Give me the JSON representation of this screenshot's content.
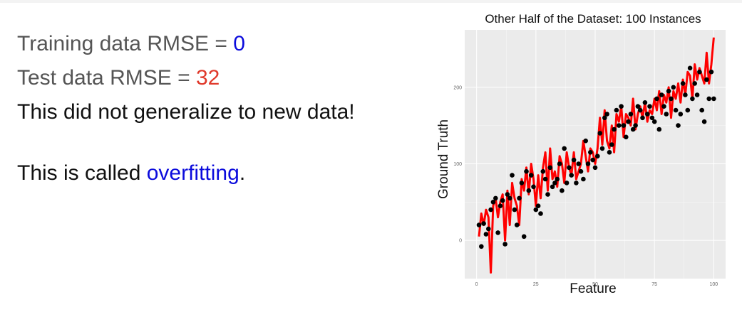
{
  "text": {
    "train_label": "Training data RMSE = ",
    "train_value": "0",
    "test_label": "Test data RMSE = ",
    "test_value": "32",
    "generalize": "This did not generalize to new data!",
    "called_prefix": "This is called ",
    "called_term": "overfitting",
    "called_suffix": "."
  },
  "colors": {
    "train_value": "#0b0bdc",
    "test_value": "#e0392b",
    "term": "#0b0bdc",
    "fit_line": "#ff0000",
    "points": "#000000",
    "panel": "#ebebeb",
    "grid": "#ffffff"
  },
  "chart_data": {
    "type": "scatter",
    "title": "Other Half of the Dataset: 100 Instances",
    "xlabel": "Feature",
    "ylabel": "Ground Truth",
    "xlim": [
      -5,
      105
    ],
    "ylim": [
      -50,
      275
    ],
    "xticks": [
      0,
      25,
      50,
      75,
      100
    ],
    "yticks": [
      0,
      100,
      200
    ],
    "grid": true,
    "legend": "none",
    "series": [
      {
        "kind": "points",
        "x": [
          1,
          2,
          3,
          4,
          5,
          6,
          7,
          8,
          9,
          10,
          11,
          12,
          13,
          14,
          15,
          16,
          17,
          18,
          19,
          20,
          21,
          22,
          23,
          24,
          25,
          26,
          27,
          28,
          29,
          30,
          31,
          32,
          33,
          34,
          35,
          36,
          37,
          38,
          39,
          40,
          41,
          42,
          43,
          44,
          45,
          46,
          47,
          48,
          49,
          50,
          51,
          52,
          53,
          54,
          55,
          56,
          57,
          58,
          59,
          60,
          61,
          62,
          63,
          64,
          65,
          66,
          67,
          68,
          69,
          70,
          71,
          72,
          73,
          74,
          75,
          76,
          77,
          78,
          79,
          80,
          81,
          82,
          83,
          84,
          85,
          86,
          87,
          88,
          89,
          90,
          91,
          92,
          93,
          94,
          95,
          96,
          97,
          98,
          99,
          100
        ],
        "y": [
          20,
          -8,
          22,
          8,
          15,
          40,
          50,
          55,
          10,
          45,
          52,
          -5,
          60,
          55,
          85,
          40,
          20,
          55,
          75,
          5,
          90,
          65,
          85,
          70,
          40,
          45,
          35,
          90,
          80,
          60,
          95,
          70,
          75,
          80,
          100,
          65,
          120,
          75,
          95,
          85,
          105,
          75,
          100,
          90,
          80,
          130,
          100,
          115,
          105,
          95,
          110,
          140,
          120,
          160,
          165,
          115,
          125,
          145,
          170,
          150,
          175,
          150,
          135,
          155,
          165,
          145,
          150,
          175,
          170,
          160,
          180,
          165,
          175,
          160,
          155,
          185,
          145,
          190,
          175,
          165,
          195,
          185,
          200,
          170,
          150,
          165,
          205,
          190,
          170,
          225,
          185,
          205,
          190,
          220,
          170,
          155,
          210,
          185,
          220,
          185
        ]
      },
      {
        "kind": "line",
        "x": [
          1,
          2,
          3,
          4,
          5,
          6,
          7,
          8,
          9,
          10,
          11,
          12,
          13,
          14,
          15,
          16,
          17,
          18,
          19,
          20,
          21,
          22,
          23,
          24,
          25,
          26,
          27,
          28,
          29,
          30,
          31,
          32,
          33,
          34,
          35,
          36,
          37,
          38,
          39,
          40,
          41,
          42,
          43,
          44,
          45,
          46,
          47,
          48,
          49,
          50,
          51,
          52,
          53,
          54,
          55,
          56,
          57,
          58,
          59,
          60,
          61,
          62,
          63,
          64,
          65,
          66,
          67,
          68,
          69,
          70,
          71,
          72,
          73,
          74,
          75,
          76,
          77,
          78,
          79,
          80,
          81,
          82,
          83,
          84,
          85,
          86,
          87,
          88,
          89,
          90,
          91,
          92,
          93,
          94,
          95,
          96,
          97,
          98,
          99,
          100
        ],
        "y": [
          5,
          35,
          20,
          40,
          30,
          -42,
          45,
          55,
          30,
          50,
          60,
          0,
          65,
          20,
          75,
          55,
          45,
          20,
          80,
          65,
          95,
          60,
          100,
          80,
          45,
          85,
          55,
          95,
          115,
          65,
          120,
          80,
          90,
          70,
          110,
          100,
          75,
          115,
          95,
          85,
          115,
          80,
          90,
          100,
          130,
          110,
          90,
          120,
          115,
          100,
          120,
          160,
          125,
          170,
          130,
          120,
          150,
          115,
          165,
          155,
          175,
          135,
          165,
          160,
          150,
          185,
          145,
          165,
          175,
          160,
          180,
          155,
          170,
          165,
          185,
          170,
          195,
          165,
          190,
          180,
          200,
          160,
          195,
          185,
          205,
          180,
          210,
          190,
          220,
          215,
          185,
          230,
          210,
          225,
          215,
          205,
          245,
          205,
          230,
          265
        ]
      }
    ]
  }
}
